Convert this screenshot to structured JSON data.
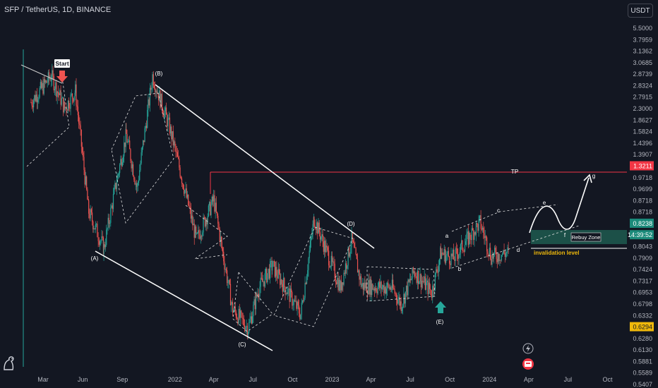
{
  "header": {
    "symbol_line": "SFP / TetherUS, 1D, BINANCE",
    "currency": "USDT"
  },
  "colors": {
    "background": "#131722",
    "up": "#26a69a",
    "down": "#ef5350",
    "white": "#ffffff",
    "tp_line": "#f23645",
    "current_tag": "#1b8a7a",
    "zone": "#1e5a4f",
    "invalidation": "#f0b90b"
  },
  "chart_data": {
    "type": "candlestick",
    "price_ticks": [
      "5.5000",
      "3.7959",
      "3.1362",
      "3.0685",
      "2.8739",
      "2.8324",
      "2.7915",
      "2.3000",
      "1.8627",
      "1.5824",
      "1.4396",
      "1.3907",
      "1.3211",
      "0.9718",
      "0.9699",
      "0.8718",
      "0.8718",
      "0.8238",
      "14:39:52",
      "0.8043",
      "0.7909",
      "0.7424",
      "0.7317",
      "0.6953",
      "0.6798",
      "0.6332",
      "0.6294",
      "0.6280",
      "0.6130",
      "0.5881",
      "0.5589",
      "0.5407"
    ],
    "highlighted_ticks": {
      "1.3211": "tp",
      "0.8238": "current",
      "14:39:52": "current",
      "0.6294": "yellow"
    },
    "time_labels": [
      "Mar",
      "Jun",
      "Sep",
      "2022",
      "Apr",
      "Jul",
      "Oct",
      "2023",
      "Apr",
      "Jul",
      "Oct",
      "2024",
      "Apr",
      "Jul",
      "Oct"
    ],
    "wave_labels": [
      "Start",
      "(B)",
      "(A)",
      "(C)",
      "(D)",
      "(E)",
      "a",
      "b",
      "c",
      "d",
      "e",
      "f",
      "g"
    ],
    "annotations": {
      "tp": "TP",
      "rebuy": "Rebuy Zone",
      "invalidation": "invalidation level"
    },
    "key_levels": {
      "tp": 1.3211,
      "current": 0.8238
    },
    "waypoints": [
      [
        "2021-02-01",
        2.4
      ],
      [
        "2021-03-20",
        2.9
      ],
      [
        "2021-04-20",
        2.3
      ],
      [
        "2021-05-15",
        2.6
      ],
      [
        "2021-06-15",
        1.1
      ],
      [
        "2021-07-20",
        0.85
      ],
      [
        "2021-08-20",
        1.4
      ],
      [
        "2021-09-10",
        1.9
      ],
      [
        "2021-10-05",
        1.3
      ],
      [
        "2021-11-10",
        2.9
      ],
      [
        "2021-12-20",
        2.0
      ],
      [
        "2022-01-20",
        1.35
      ],
      [
        "2022-02-20",
        0.9
      ],
      [
        "2022-04-01",
        1.2
      ],
      [
        "2022-04-20",
        0.85
      ],
      [
        "2022-05-15",
        0.55
      ],
      [
        "2022-06-20",
        0.48
      ],
      [
        "2022-07-15",
        0.64
      ],
      [
        "2022-08-15",
        0.75
      ],
      [
        "2022-10-20",
        0.53
      ],
      [
        "2022-11-20",
        1.05
      ],
      [
        "2023-01-20",
        0.64
      ],
      [
        "2023-02-15",
        0.9
      ],
      [
        "2023-03-10",
        0.65
      ],
      [
        "2023-05-20",
        0.64
      ],
      [
        "2023-06-10",
        0.57
      ],
      [
        "2023-07-10",
        0.72
      ],
      [
        "2023-08-20",
        0.62
      ],
      [
        "2023-09-10",
        0.82
      ],
      [
        "2023-10-10",
        0.79
      ],
      [
        "2023-12-10",
        1.02
      ],
      [
        "2024-01-05",
        0.8
      ],
      [
        "2024-02-15",
        0.8238
      ]
    ]
  }
}
